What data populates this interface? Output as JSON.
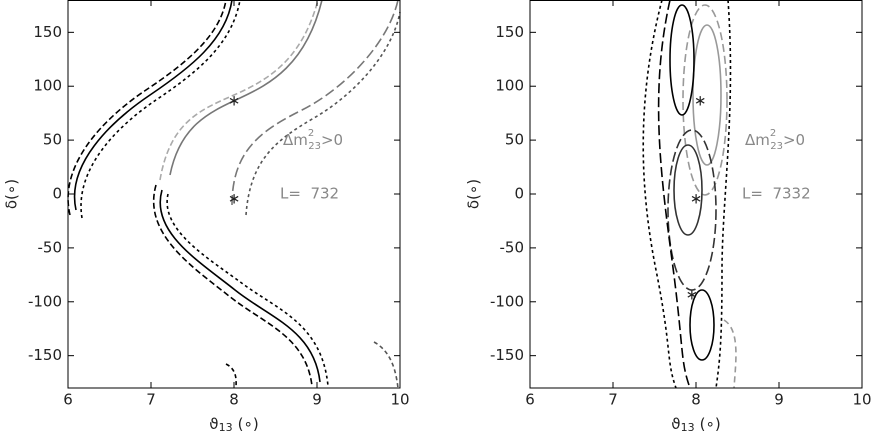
{
  "chart_data": [
    {
      "type": "contour",
      "xlabel": {
        "base": "ϑ",
        "sub": "13",
        "unit": "(∘)"
      },
      "ylabel": "δ(∘)",
      "xlim": [
        6,
        10
      ],
      "ylim": [
        -180,
        180
      ],
      "xticks": [
        6,
        7,
        8,
        9,
        10
      ],
      "yticks": [
        -150,
        -100,
        -50,
        0,
        50,
        100,
        150
      ],
      "annotations": {
        "mass": {
          "base": "Δm",
          "sup": "2",
          "sub": "23",
          "rest": ">0"
        },
        "baseline": "L=  732"
      },
      "points": {
        "x": [
          8,
          8
        ],
        "y": [
          88,
          -3
        ]
      }
    },
    {
      "type": "contour",
      "xlabel": {
        "base": "ϑ",
        "sub": "13",
        "unit": "(∘)"
      },
      "ylabel": "δ(∘)",
      "xlim": [
        6,
        10
      ],
      "ylim": [
        -180,
        180
      ],
      "xticks": [
        6,
        7,
        8,
        9,
        10
      ],
      "yticks": [
        -150,
        -100,
        -50,
        0,
        50,
        100,
        150
      ],
      "annotations": {
        "mass": {
          "base": "Δm",
          "sup": "2",
          "sub": "23",
          "rest": ">0"
        },
        "baseline": "L=  7332"
      },
      "points": {
        "x": [
          8.05,
          8,
          7.95
        ],
        "y": [
          88,
          -3,
          -92
        ]
      }
    }
  ]
}
